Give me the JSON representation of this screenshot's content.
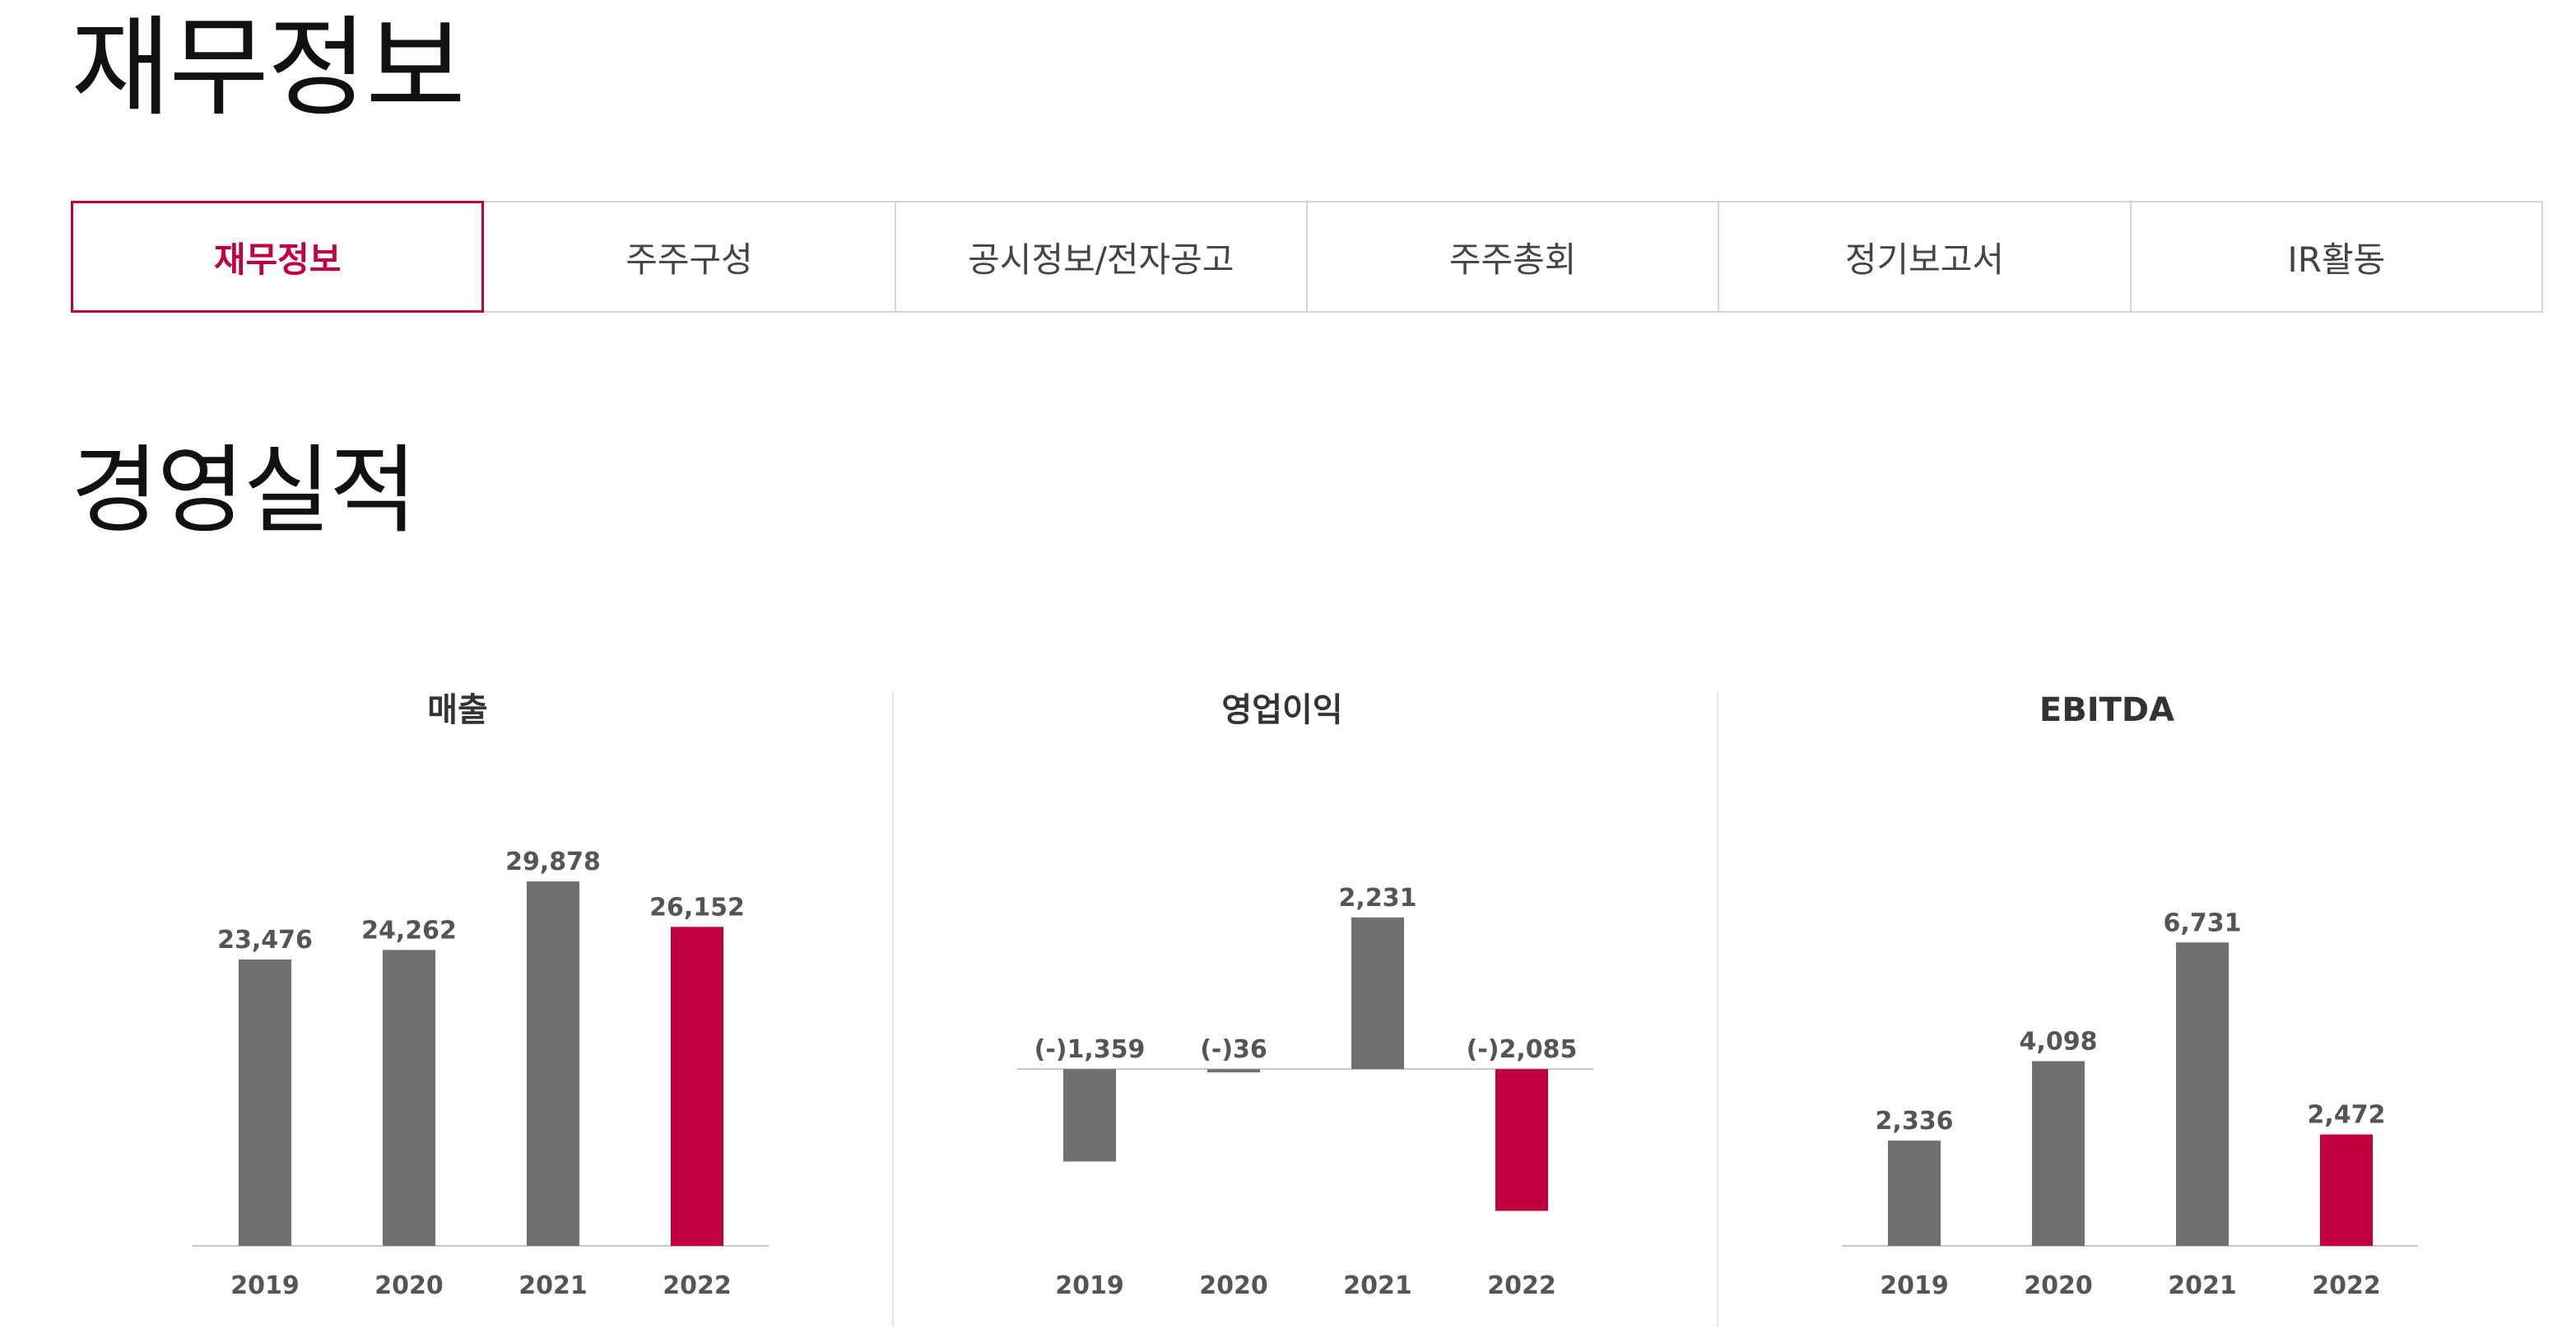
{
  "page": {
    "title": "재무정보"
  },
  "tabs": [
    {
      "label": "재무정보",
      "active": true
    },
    {
      "label": "주주구성",
      "active": false
    },
    {
      "label": "공시정보/전자공고",
      "active": false
    },
    {
      "label": "주주총회",
      "active": false
    },
    {
      "label": "정기보고서",
      "active": false
    },
    {
      "label": "IR활동",
      "active": false
    }
  ],
  "section": {
    "title": "경영실적"
  },
  "colors": {
    "accent": "#c3003f",
    "bar": "#707070",
    "axis": "#c8c8c8",
    "label": "#555555"
  },
  "chart_data": [
    {
      "type": "bar",
      "title": "매출",
      "categories": [
        "2019",
        "2020",
        "2021",
        "2022"
      ],
      "values": [
        23476,
        24262,
        29878,
        26152
      ],
      "value_labels": [
        "23,476",
        "24,262",
        "29,878",
        "26,152"
      ],
      "highlight": "2022",
      "ylim": [
        0,
        34000
      ]
    },
    {
      "type": "bar",
      "title": "영업이익",
      "categories": [
        "2019",
        "2020",
        "2021",
        "2022"
      ],
      "values": [
        -1359,
        -36,
        2231,
        -2085
      ],
      "value_labels": [
        "(-)1,359",
        "(-)36",
        "2,231",
        "(-)2,085"
      ],
      "highlight": "2022",
      "ylim": [
        -2600,
        3500
      ]
    },
    {
      "type": "bar",
      "title": "EBITDA",
      "categories": [
        "2019",
        "2020",
        "2021",
        "2022"
      ],
      "values": [
        2336,
        4098,
        6731,
        2472
      ],
      "value_labels": [
        "2,336",
        "4,098",
        "6,731",
        "2,472"
      ],
      "highlight": "2022",
      "ylim": [
        0,
        9200
      ]
    }
  ]
}
